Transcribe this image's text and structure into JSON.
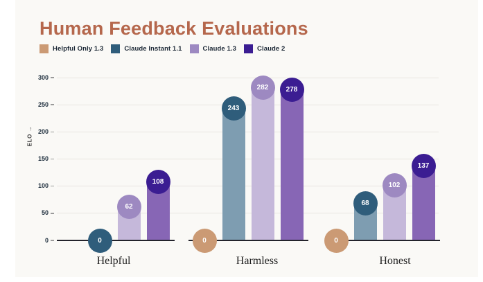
{
  "title": "Human Feedback Evaluations",
  "title_color": "#b5674c",
  "background": {
    "page": "#ffffff",
    "panel": "#faf9f6"
  },
  "axis": {
    "y_label": "ELO →",
    "y_ticks": [
      0,
      50,
      100,
      150,
      200,
      250,
      300
    ]
  },
  "chart_data": {
    "type": "bar",
    "title": "Human Feedback Evaluations",
    "xlabel": "",
    "ylabel": "ELO",
    "ylim": [
      0,
      300
    ],
    "yticks": [
      0,
      50,
      100,
      150,
      200,
      250,
      300
    ],
    "grid": true,
    "legend_position": "top-left",
    "categories": [
      "Helpful",
      "Harmless",
      "Honest"
    ],
    "series": [
      {
        "name": "Helpful Only 1.3",
        "color": "#cb9a74",
        "bar_color": "#d9b394",
        "values": [
          null,
          0,
          0
        ]
      },
      {
        "name": "Claude Instant 1.1",
        "color": "#2f5d7b",
        "bar_color": "#7e9db1",
        "values": [
          0,
          243,
          68
        ]
      },
      {
        "name": "Claude 1.3",
        "color": "#9d89c1",
        "bar_color": "#c5b8da",
        "values": [
          62,
          282,
          102
        ]
      },
      {
        "name": "Claude 2",
        "color": "#3b1d92",
        "bar_color": "#8766b5",
        "values": [
          108,
          278,
          137
        ]
      }
    ],
    "value_labels_shown": true,
    "value_label_style": "circle-at-bar-top"
  }
}
